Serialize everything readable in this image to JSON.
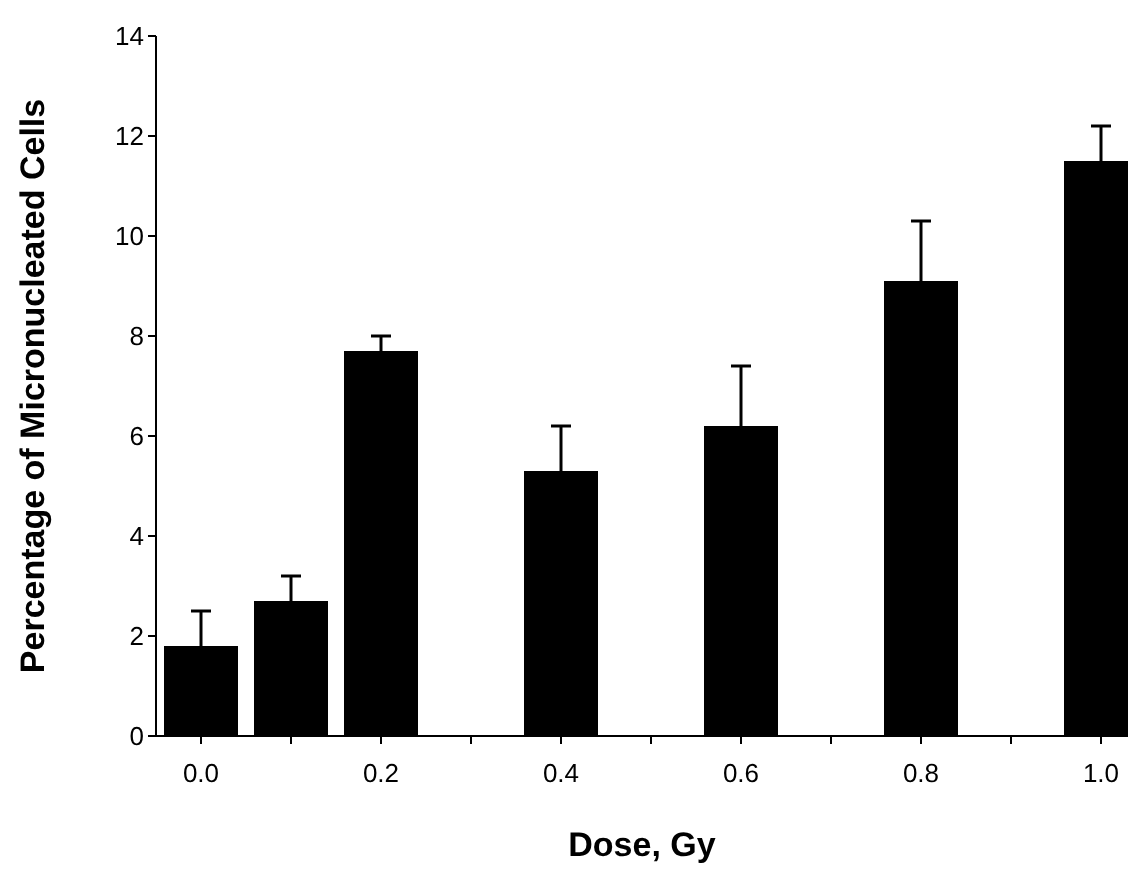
{
  "chart_data": {
    "type": "bar",
    "xlabel": "Dose, Gy",
    "ylabel": "Percentage of Micronucleated Cells",
    "x": [
      0.0,
      0.1,
      0.2,
      0.4,
      0.6,
      0.8,
      1.0
    ],
    "values": [
      1.8,
      2.7,
      7.7,
      5.3,
      6.2,
      9.1,
      11.5
    ],
    "errors": [
      [
        1.8,
        2.5
      ],
      [
        2.7,
        3.2
      ],
      [
        7.7,
        8.0
      ],
      [
        5.3,
        6.2
      ],
      [
        6.2,
        7.4
      ],
      [
        9.1,
        10.3
      ],
      [
        11.5,
        12.2
      ]
    ],
    "color": "#000000",
    "xlim": [
      -0.05,
      1.03
    ],
    "xticks": [
      {
        "value": 0.0,
        "label": "0.0"
      },
      {
        "value": 0.1,
        "label": null
      },
      {
        "value": 0.2,
        "label": "0.2"
      },
      {
        "value": 0.3,
        "label": null
      },
      {
        "value": 0.4,
        "label": "0.4"
      },
      {
        "value": 0.5,
        "label": null
      },
      {
        "value": 0.6,
        "label": "0.6"
      },
      {
        "value": 0.7,
        "label": null
      },
      {
        "value": 0.8,
        "label": "0.8"
      },
      {
        "value": 0.9,
        "label": null
      },
      {
        "value": 1.0,
        "label": "1.0"
      }
    ],
    "ylim": [
      0,
      14
    ],
    "yticks": [
      0,
      2,
      4,
      6,
      8,
      10,
      12,
      14
    ],
    "grid": false,
    "legend": false
  }
}
